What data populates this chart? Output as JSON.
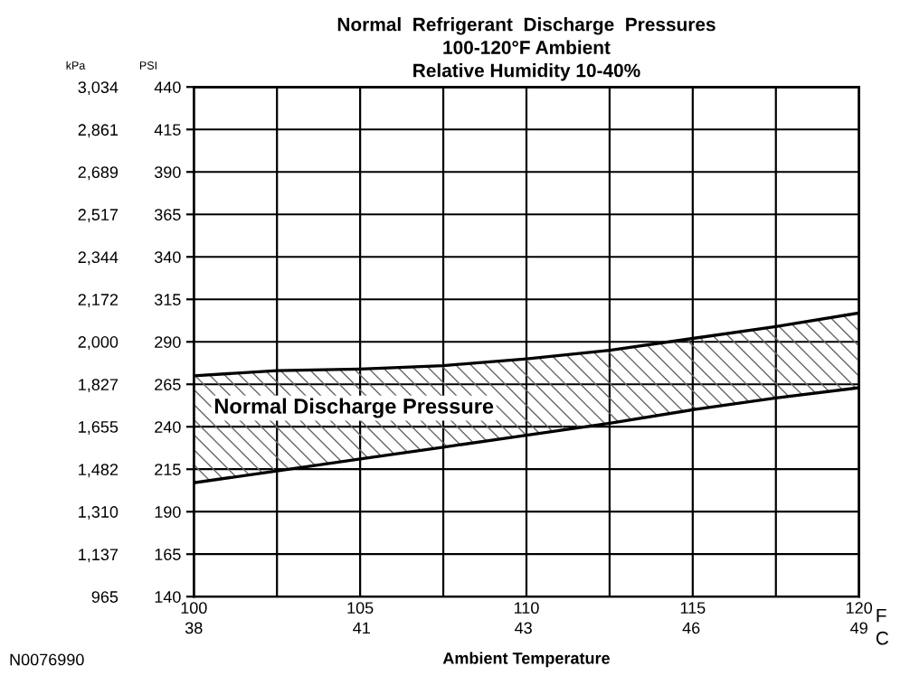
{
  "chart_data": {
    "type": "line",
    "title": "Normal  Refrigerant  Discharge  Pressures\n100-120°F Ambient\nRelative Humidity 10-40%",
    "xlabel": "Ambient Temperature",
    "ylabel": "PSI",
    "y2label": "kPa",
    "x2label": "C",
    "annotations": [
      "Normal Discharge Pressure",
      "F",
      "N0076990"
    ],
    "x": [
      100,
      102.5,
      105,
      107.5,
      110,
      112.5,
      115,
      117.5,
      120
    ],
    "series": [
      {
        "color": "#000000",
        "values": [
          207,
          214,
          221,
          228,
          235,
          242,
          250,
          257,
          263
        ]
      },
      {
        "type": "area",
        "color": "#000000",
        "values": [
          270,
          273,
          274,
          276,
          280,
          285,
          292,
          299,
          307
        ]
      }
    ],
    "xlim": [
      100,
      120
    ],
    "xticks": [
      100,
      {
        "value": 102.5,
        "label": null
      },
      105,
      {
        "value": 107.5,
        "label": null
      },
      110,
      {
        "value": 112.5,
        "label": null
      },
      115,
      {
        "value": 117.5,
        "label": null
      },
      120
    ],
    "x2lim": [
      37.8,
      48.9
    ],
    "x2ticks": [
      {
        "value": 37.8,
        "label": "38"
      },
      {
        "value": 40.6,
        "label": "41"
      },
      {
        "value": 43.3,
        "label": "43"
      },
      {
        "value": 46.1,
        "label": "46"
      },
      {
        "value": 48.9,
        "label": "49"
      }
    ],
    "ylim": [
      140,
      440
    ],
    "yticks": [
      140,
      165,
      190,
      215,
      240,
      265,
      290,
      315,
      340,
      365,
      390,
      415,
      440
    ],
    "y2lim": [
      965,
      3034
    ],
    "y2ticks": [
      965,
      {
        "value": 1137,
        "label": "1,137"
      },
      {
        "value": 1310,
        "label": "1,310"
      },
      {
        "value": 1482,
        "label": "1,482"
      },
      {
        "value": 1655,
        "label": "1,655"
      },
      {
        "value": 1827,
        "label": "1,827"
      },
      {
        "value": 2000,
        "label": "2,000"
      },
      {
        "value": 2172,
        "label": "2,172"
      },
      {
        "value": 2344,
        "label": "2,344"
      },
      {
        "value": 2517,
        "label": "2,517"
      },
      {
        "value": 2689,
        "label": "2,689"
      },
      {
        "value": 2861,
        "label": "2,861"
      },
      {
        "value": 3034,
        "label": "3,034"
      }
    ],
    "grid": true,
    "marker": "none",
    "line_style": "solid"
  }
}
